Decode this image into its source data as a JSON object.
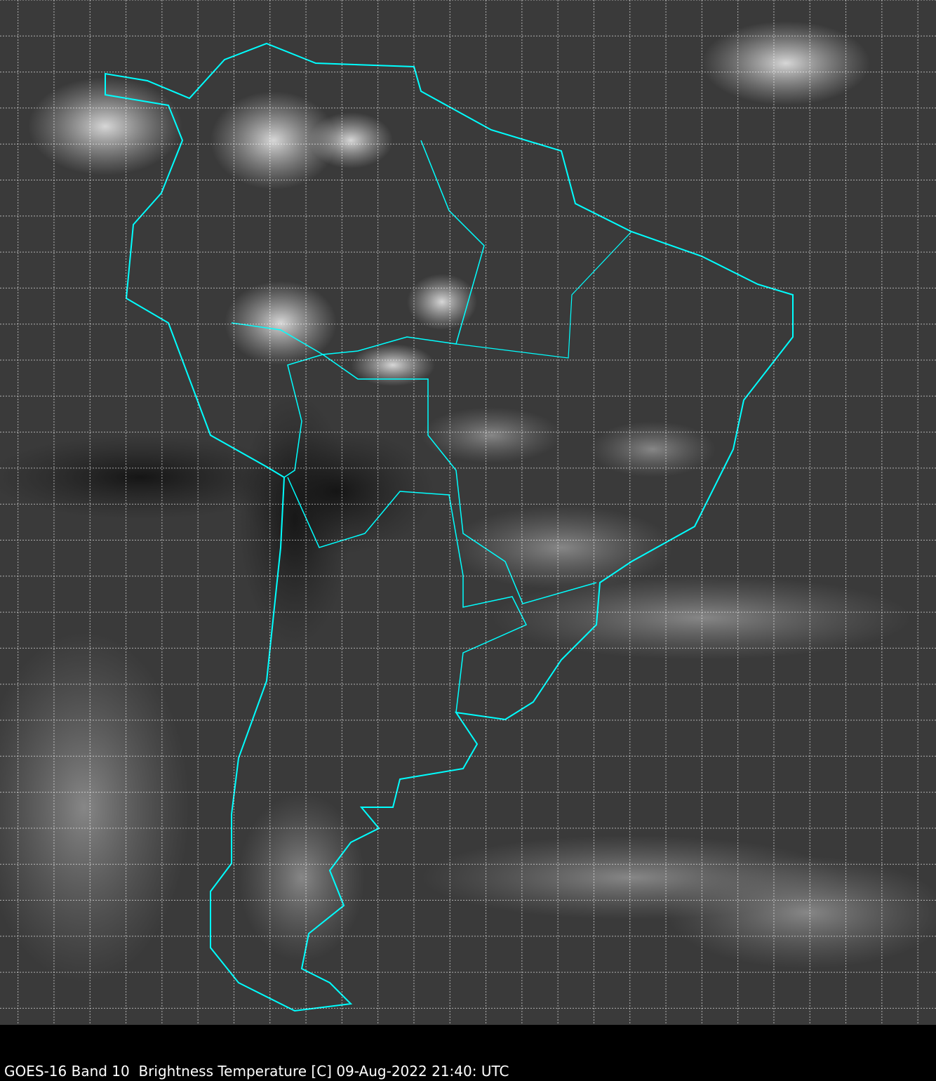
{
  "image": {
    "type": "satellite-infrared",
    "region": "South America",
    "colors": {
      "background": "#000000",
      "borders": "#00ffff",
      "grid": "#ffffff",
      "caption": "#ffffff"
    },
    "grid": true
  },
  "caption": "GOES-16 Band 10  Brightness Temperature [C] 09-Aug-2022 21:40: UTC"
}
